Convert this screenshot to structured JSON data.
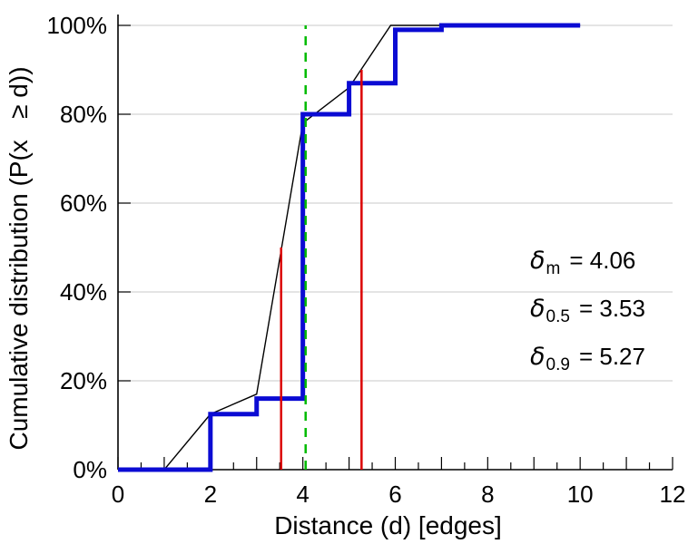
{
  "figure": {
    "background": "#ffffff"
  },
  "chart_data": {
    "type": "line",
    "title": "",
    "xlabel": "Distance (d) [edges]",
    "ylabel": "Cumulative distribution (P(x   ≥ d))",
    "xlim": [
      0,
      12
    ],
    "ylim": [
      0,
      100
    ],
    "x_ticks": [
      0,
      2,
      4,
      6,
      8,
      10,
      12
    ],
    "x_minor_tick_step": 0.5,
    "y_ticks": [
      0,
      20,
      40,
      60,
      80,
      100
    ],
    "y_tick_labels": [
      "0%",
      "20%",
      "40%",
      "60%",
      "80%",
      "100%"
    ],
    "grid": true,
    "legend": "none",
    "style": {
      "grid_color": "#c8c8c8",
      "axis_color": "#000000",
      "cdf_color": "#0b0bd3",
      "interp_color": "#000000",
      "marker_red": "#dc0000",
      "marker_green": "#00bb00"
    },
    "series": [
      {
        "name": "linear-interpolation",
        "step": false,
        "color": "#000000",
        "width": 1.4,
        "points": [
          [
            1,
            0
          ],
          [
            2,
            12.5
          ],
          [
            3,
            17
          ],
          [
            4,
            78
          ],
          [
            5,
            86
          ],
          [
            5.9,
            100
          ],
          [
            10,
            100
          ]
        ]
      },
      {
        "name": "cdf-steps",
        "step": true,
        "color": "#0b0bd3",
        "width": 5,
        "points": [
          [
            0,
            0
          ],
          [
            2,
            12.5
          ],
          [
            3,
            16
          ],
          [
            4,
            80
          ],
          [
            5,
            87
          ],
          [
            6,
            99
          ],
          [
            7,
            100
          ],
          [
            10,
            100
          ]
        ]
      }
    ],
    "vlines": [
      {
        "name": "delta-mean",
        "x": 4.06,
        "y0": 0,
        "y1": 100,
        "color": "#00bb00",
        "dash": "10 8",
        "width": 2.5
      },
      {
        "name": "delta-median",
        "x": 3.53,
        "y0": 0,
        "y1": 50,
        "color": "#dc0000",
        "dash": "",
        "width": 2.5
      },
      {
        "name": "delta-90th",
        "x": 5.27,
        "y0": 0,
        "y1": 90,
        "color": "#dc0000",
        "dash": "",
        "width": 2.5
      }
    ],
    "annotations": [
      {
        "symbol": "δ",
        "sub": "m",
        "value": "= 4.06"
      },
      {
        "symbol": "δ",
        "sub": "0.5",
        "value": "= 3.53"
      },
      {
        "symbol": "δ",
        "sub": "0.9",
        "value": "= 5.27"
      }
    ]
  }
}
